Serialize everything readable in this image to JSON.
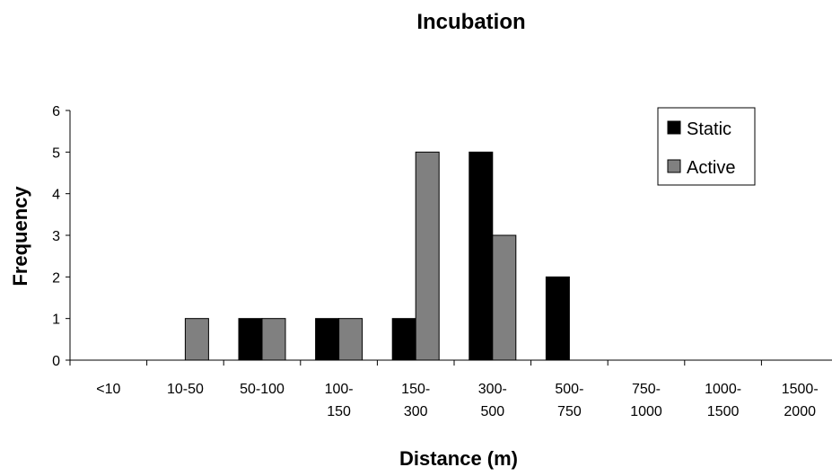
{
  "chart_data": {
    "type": "bar",
    "title": "Incubation",
    "xlabel": "Distance (m)",
    "ylabel": "Frequency",
    "categories": [
      [
        "<10"
      ],
      [
        "10-50"
      ],
      [
        "50-100"
      ],
      [
        "100-",
        "150"
      ],
      [
        "150-",
        "300"
      ],
      [
        "300-",
        "500"
      ],
      [
        "500-",
        "750"
      ],
      [
        "750-",
        "1000"
      ],
      [
        "1000-",
        "1500"
      ],
      [
        "1500-",
        "2000"
      ]
    ],
    "series": [
      {
        "name": "Static",
        "color": "#000000",
        "values": [
          0,
          0,
          1,
          1,
          1,
          5,
          2,
          0,
          0,
          0
        ]
      },
      {
        "name": "Active",
        "color": "#808080",
        "values": [
          0,
          1,
          1,
          1,
          5,
          3,
          0,
          0,
          0,
          0
        ]
      }
    ],
    "ylim": [
      0,
      6
    ],
    "yticks": [
      0,
      1,
      2,
      3,
      4,
      5,
      6
    ],
    "grid": false,
    "legend_position": "top-right"
  }
}
